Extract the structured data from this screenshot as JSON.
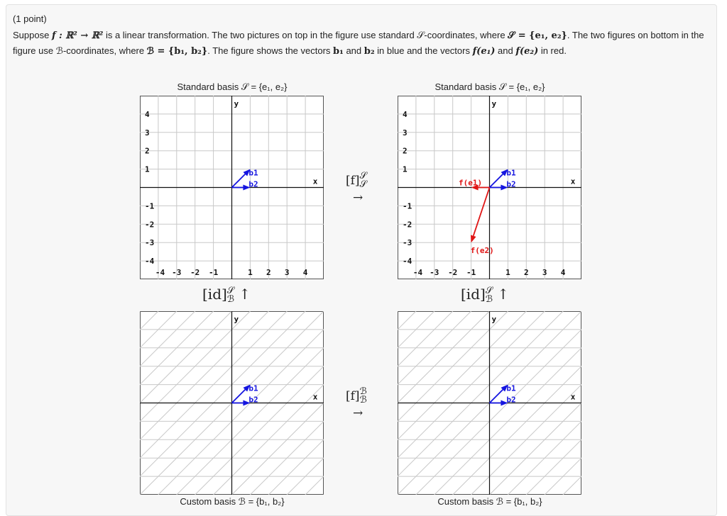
{
  "header": {
    "points": "(1 point)",
    "text_1": "Suppose ",
    "f_sig": "f : ℝ² → ℝ²",
    "text_2": " is a linear transformation. The two pictures on top in the figure use standard ",
    "S_script": "𝒮",
    "text_3": "-coordinates, where ",
    "S_set": "𝒮 = {e₁, e₂}",
    "text_4": ". The two figures on bottom in the figure use ",
    "B_script": "ℬ",
    "text_5": "-coordinates, where ",
    "B_set": "ℬ = {b₁, b₂}",
    "text_6": ". The figure shows the vectors ",
    "b1": "b₁",
    "text_7": " and ",
    "b2": "b₂",
    "text_8": " in blue and the vectors ",
    "fe1": "f(e₁)",
    "text_9": " and ",
    "fe2": "f(e₂)",
    "text_10": " in red."
  },
  "captions": {
    "top_left": "Standard basis 𝒮 = {e₁, e₂}",
    "top_right": "Standard basis 𝒮 = {e₁, e₂}",
    "bottom_left": "Custom basis ℬ = {b₁, b₂}",
    "bottom_right": "Custom basis ℬ = {b₁, b₂}"
  },
  "maps": {
    "fS_base": "[f]",
    "fS_sup": "𝒮",
    "fS_sub": "𝒮",
    "fB_base": "[f]",
    "fB_sup": "ℬ",
    "fB_sub": "ℬ",
    "right_arrow": "→",
    "id_base": "[id]",
    "id_sup": "𝒮",
    "id_sub": "ℬ",
    "up_arrow": "↑"
  },
  "plots": {
    "axis_x_label": "x",
    "axis_y_label": "y",
    "x_ticks": [
      -4,
      -3,
      -2,
      -1,
      1,
      2,
      3,
      4
    ],
    "y_ticks": [
      4,
      3,
      2,
      1,
      -1,
      -2,
      -3,
      -4
    ],
    "x_range": [
      -5,
      5
    ],
    "y_range": [
      -5,
      5
    ],
    "colors": {
      "blue": "#1515e0",
      "red": "#e01515",
      "grid": "#c8c8c8",
      "axis": "#111111"
    },
    "vectors": {
      "b1": {
        "label": "b1",
        "x": 1,
        "y": 1,
        "color": "#1515e0"
      },
      "b2": {
        "label": "b2",
        "x": 1,
        "y": 0,
        "color": "#1515e0"
      },
      "fe1": {
        "label": "f(e1)",
        "x": -1,
        "y": 0,
        "color": "#e01515"
      },
      "fe2": {
        "label": "f(e2)",
        "x": -1,
        "y": -3,
        "color": "#e01515"
      }
    }
  }
}
